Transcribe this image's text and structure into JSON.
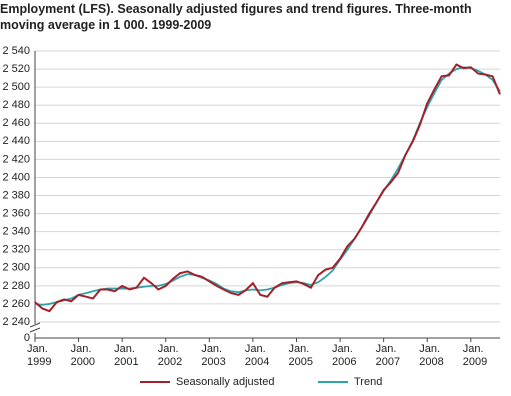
{
  "chart_data": {
    "type": "line",
    "title": "Employment (LFS). Seasonally adjusted figures and trend figures. Three-month moving average in 1 000. 1999-2009",
    "x": [
      1999,
      1999.17,
      1999.33,
      1999.5,
      1999.67,
      1999.83,
      2000,
      2000.17,
      2000.33,
      2000.5,
      2000.67,
      2000.83,
      2001,
      2001.17,
      2001.33,
      2001.5,
      2001.67,
      2001.83,
      2002,
      2002.17,
      2002.33,
      2002.5,
      2002.67,
      2002.83,
      2003,
      2003.17,
      2003.33,
      2003.5,
      2003.67,
      2003.83,
      2004,
      2004.17,
      2004.33,
      2004.5,
      2004.67,
      2004.83,
      2005,
      2005.17,
      2005.33,
      2005.5,
      2005.67,
      2005.83,
      2006,
      2006.17,
      2006.33,
      2006.5,
      2006.67,
      2006.83,
      2007,
      2007.17,
      2007.33,
      2007.5,
      2007.67,
      2007.83,
      2008,
      2008.17,
      2008.33,
      2008.5,
      2008.67,
      2008.83,
      2009,
      2009.17,
      2009.33,
      2009.5,
      2009.67
    ],
    "series": [
      {
        "name": "Seasonally adjusted",
        "color": "#a3202a",
        "values": [
          2262,
          2255,
          2252,
          2262,
          2265,
          2263,
          2270,
          2268,
          2266,
          2276,
          2276,
          2274,
          2280,
          2276,
          2278,
          2289,
          2283,
          2276,
          2280,
          2288,
          2294,
          2296,
          2292,
          2290,
          2285,
          2280,
          2276,
          2272,
          2270,
          2275,
          2283,
          2270,
          2268,
          2278,
          2283,
          2284,
          2285,
          2282,
          2278,
          2292,
          2298,
          2300,
          2310,
          2324,
          2332,
          2345,
          2360,
          2372,
          2386,
          2395,
          2405,
          2425,
          2440,
          2458,
          2482,
          2498,
          2512,
          2513,
          2525,
          2521,
          2522,
          2515,
          2514,
          2512,
          2492
        ]
      },
      {
        "name": "Trend",
        "color": "#2ba5a9",
        "values": [
          2260,
          2259,
          2260,
          2262,
          2264,
          2266,
          2270,
          2272,
          2274,
          2276,
          2277,
          2277,
          2277,
          2277,
          2278,
          2279,
          2280,
          2280,
          2282,
          2286,
          2290,
          2293,
          2292,
          2289,
          2286,
          2282,
          2277,
          2274,
          2273,
          2275,
          2276,
          2275,
          2276,
          2278,
          2281,
          2283,
          2284,
          2283,
          2281,
          2284,
          2290,
          2297,
          2309,
          2320,
          2332,
          2345,
          2358,
          2372,
          2385,
          2397,
          2410,
          2425,
          2441,
          2460,
          2478,
          2494,
          2508,
          2515,
          2520,
          2522,
          2521,
          2518,
          2514,
          2508,
          2495
        ]
      }
    ],
    "xlim": [
      1999,
      2009.67
    ],
    "xticks": [
      {
        "value": 1999,
        "label": "Jan. 1999"
      },
      {
        "value": 2000,
        "label": "Jan. 2000"
      },
      {
        "value": 2001,
        "label": "Jan. 2001"
      },
      {
        "value": 2002,
        "label": "Jan. 2002"
      },
      {
        "value": 2003,
        "label": "Jan. 2003"
      },
      {
        "value": 2004,
        "label": "Jan. 2004"
      },
      {
        "value": 2005,
        "label": "Jan. 2005"
      },
      {
        "value": 2006,
        "label": "Jan. 2006"
      },
      {
        "value": 2007,
        "label": "Jan. 2007"
      },
      {
        "value": 2008,
        "label": "Jan. 2008"
      },
      {
        "value": 2009,
        "label": "Jan. 2009"
      }
    ],
    "ylim": [
      0,
      2540
    ],
    "y_break": [
      0,
      2240
    ],
    "yticks": [
      0,
      {
        "value": 2240,
        "label": "2 240"
      },
      {
        "value": 2260,
        "label": "2 260"
      },
      {
        "value": 2280,
        "label": "2 280"
      },
      {
        "value": 2300,
        "label": "2 300"
      },
      {
        "value": 2320,
        "label": "2 320"
      },
      {
        "value": 2340,
        "label": "2 340"
      },
      {
        "value": 2360,
        "label": "2 360"
      },
      {
        "value": 2380,
        "label": "2 380"
      },
      {
        "value": 2400,
        "label": "2 400"
      },
      {
        "value": 2420,
        "label": "2 420"
      },
      {
        "value": 2440,
        "label": "2 440"
      },
      {
        "value": 2460,
        "label": "2 460"
      },
      {
        "value": 2480,
        "label": "2 480"
      },
      {
        "value": 2500,
        "label": "2 500"
      },
      {
        "value": 2520,
        "label": "2 520"
      },
      {
        "value": 2540,
        "label": "2 540"
      }
    ],
    "grid": true,
    "legend": "bottom"
  }
}
